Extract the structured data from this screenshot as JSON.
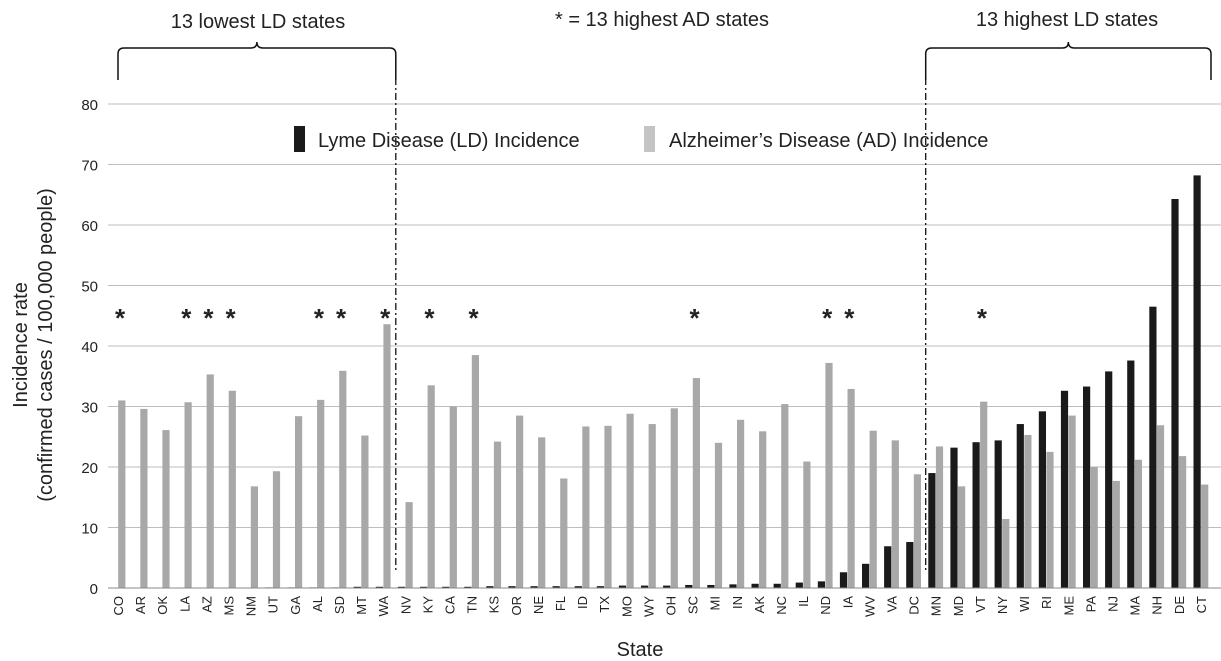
{
  "chart_data": {
    "type": "bar",
    "title": "",
    "xlabel": "State",
    "ylabel_line1": "Incidence rate",
    "ylabel_line2": "(confirmed cases / 100,000 people)",
    "ylim": [
      0,
      80
    ],
    "yticks": [
      0,
      10,
      20,
      30,
      40,
      50,
      60,
      70,
      80
    ],
    "grid": true,
    "legend_placement": "top-center",
    "categories": [
      "CO",
      "AR",
      "OK",
      "LA",
      "AZ",
      "MS",
      "NM",
      "UT",
      "GA",
      "AL",
      "SD",
      "MT",
      "WA",
      "NV",
      "KY",
      "CA",
      "TN",
      "KS",
      "OR",
      "NE",
      "FL",
      "ID",
      "TX",
      "MO",
      "WY",
      "OH",
      "SC",
      "MI",
      "IN",
      "AK",
      "NC",
      "IL",
      "ND",
      "IA",
      "WV",
      "VA",
      "DC",
      "MN",
      "MD",
      "VT",
      "NY",
      "WI",
      "RI",
      "ME",
      "PA",
      "NJ",
      "MA",
      "NH",
      "DE",
      "CT"
    ],
    "series": [
      {
        "name": "Lyme Disease (LD) Incidence",
        "color": "#1a1a1a",
        "values": [
          0,
          0,
          0,
          0,
          0,
          0,
          0,
          0.1,
          0.1,
          0.1,
          0.1,
          0.2,
          0.2,
          0.2,
          0.2,
          0.2,
          0.2,
          0.3,
          0.3,
          0.3,
          0.3,
          0.3,
          0.3,
          0.4,
          0.4,
          0.4,
          0.5,
          0.5,
          0.6,
          0.7,
          0.7,
          0.9,
          1.1,
          2.6,
          4.0,
          6.9,
          7.6,
          19.0,
          23.2,
          24.1,
          24.4,
          27.1,
          29.2,
          32.6,
          33.3,
          35.8,
          37.6,
          46.5,
          64.3,
          68.2
        ]
      },
      {
        "name": "Alzheimer’s Disease (AD) Incidence",
        "color": "#a8a8a8",
        "values": [
          31.0,
          29.6,
          26.1,
          30.7,
          35.3,
          32.6,
          16.8,
          19.3,
          28.4,
          31.1,
          35.9,
          25.2,
          43.6,
          14.2,
          33.5,
          30.0,
          38.5,
          24.2,
          28.5,
          24.9,
          18.1,
          26.7,
          26.8,
          28.8,
          27.1,
          29.7,
          34.7,
          24.0,
          27.8,
          25.9,
          30.4,
          20.9,
          37.2,
          32.9,
          26.0,
          24.4,
          18.8,
          23.4,
          16.8,
          30.8,
          11.4,
          25.3,
          22.5,
          28.5,
          20.0,
          17.7,
          21.2,
          26.9,
          21.8,
          17.1
        ]
      }
    ],
    "asterisk_states": [
      "CO",
      "LA",
      "AZ",
      "MS",
      "AL",
      "SD",
      "WA",
      "KY",
      "TN",
      "SC",
      "ND",
      "IA",
      "VT"
    ],
    "annotations": {
      "lowest_label": "13 lowest LD states",
      "highest_ad_label": "* = 13 highest AD states",
      "highest_ld_label": "13 highest LD states",
      "asterisk_symbol": "*"
    }
  }
}
